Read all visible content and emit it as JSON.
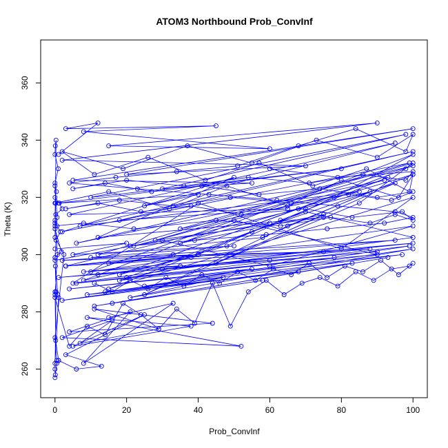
{
  "chart_data": {
    "type": "line",
    "title": "ATOM3 Northbound Prob_ConvInf",
    "xlabel": "Prob_ConvInf",
    "ylabel": "Theta (K)",
    "xlim": [
      -4,
      104
    ],
    "ylim": [
      250,
      375
    ],
    "xticks": [
      0,
      20,
      40,
      60,
      80,
      100
    ],
    "yticks": [
      260,
      280,
      300,
      320,
      340,
      360
    ],
    "grid": false,
    "marker": "open-circle",
    "color": "#0000ff",
    "series": [
      {
        "x": [
          0,
          0.5,
          1,
          0.2,
          0,
          0.8,
          0.1,
          0,
          0.3,
          1.5,
          0.6,
          0,
          0.2,
          2,
          1.2,
          0,
          0.4,
          0,
          0.9,
          0,
          0.1,
          0.3,
          0,
          0.7,
          0,
          1,
          0,
          0.5,
          0,
          2.5,
          0,
          0.2,
          0,
          0.6,
          0,
          1.8,
          0,
          0.3,
          0,
          0.1
        ],
        "y": [
          257,
          262,
          263,
          270,
          287,
          286,
          296,
          299,
          305,
          308,
          310,
          312,
          314,
          316,
          318,
          320,
          322,
          325,
          330,
          335,
          338,
          340,
          311,
          300,
          286,
          285,
          262,
          263,
          271,
          300,
          306,
          318,
          324,
          313,
          309,
          301,
          299,
          287,
          260,
          258
        ]
      },
      {
        "x": [
          1,
          12,
          3,
          45,
          8,
          60,
          15,
          90,
          2,
          70,
          20,
          100,
          5,
          55,
          30,
          98,
          10,
          80,
          1,
          40,
          25,
          95,
          4,
          65,
          18,
          100,
          7,
          85,
          35,
          99,
          2,
          50,
          12,
          75,
          28,
          100,
          6,
          92,
          22,
          60
        ],
        "y": [
          335,
          346,
          344,
          345,
          343,
          337,
          338,
          346,
          333,
          331,
          328,
          344,
          326,
          325,
          323,
          342,
          320,
          330,
          318,
          321,
          317,
          339,
          314,
          316,
          312,
          336,
          310,
          322,
          309,
          332,
          308,
          327,
          306,
          313,
          305,
          331,
          304,
          326,
          303,
          311
        ]
      },
      {
        "x": [
          0,
          20,
          5,
          50,
          10,
          75,
          2,
          95,
          15,
          40,
          3,
          88,
          30,
          100,
          8,
          60,
          12,
          90,
          1,
          35,
          18,
          78,
          6,
          99,
          25,
          55,
          4,
          97,
          14,
          68,
          9,
          100,
          21,
          47,
          2,
          83,
          16,
          93,
          11,
          58
        ],
        "y": [
          302,
          304,
          300,
          303,
          299,
          301,
          298,
          305,
          297,
          300,
          296,
          302,
          295,
          304,
          294,
          298,
          293,
          301,
          292,
          296,
          291,
          299,
          290,
          303,
          289,
          295,
          288,
          300,
          287,
          294,
          286,
          302,
          285,
          292,
          284,
          297,
          283,
          299,
          282,
          291
        ]
      },
      {
        "x": [
          0,
          8,
          22,
          45,
          63,
          77,
          88,
          95,
          100,
          97,
          83,
          70,
          52,
          38,
          24,
          12,
          3,
          18,
          33,
          49,
          66,
          82,
          94,
          100,
          90,
          74,
          57,
          41,
          27,
          14,
          5,
          20,
          36,
          54,
          71,
          86,
          98,
          100,
          79,
          60
        ],
        "y": [
          310,
          311,
          309,
          312,
          310,
          313,
          311,
          314,
          312,
          315,
          313,
          316,
          314,
          317,
          315,
          318,
          316,
          319,
          317,
          320,
          318,
          321,
          319,
          322,
          320,
          323,
          321,
          324,
          322,
          325,
          323,
          326,
          324,
          327,
          325,
          328,
          326,
          329,
          327,
          330
        ]
      },
      {
        "x": [
          0,
          4,
          9,
          14,
          19,
          24,
          29,
          34,
          39,
          44,
          49,
          54,
          59,
          64,
          69,
          74,
          79,
          84,
          89,
          94,
          99,
          100,
          96,
          91,
          86,
          81,
          76,
          71,
          66,
          61,
          56,
          51,
          46,
          41,
          36,
          31,
          26,
          21,
          16,
          11
        ],
        "y": [
          285,
          268,
          275,
          272,
          283,
          279,
          274,
          281,
          276,
          290,
          275,
          287,
          291,
          286,
          290,
          292,
          289,
          294,
          291,
          295,
          296,
          297,
          293,
          298,
          294,
          296,
          292,
          297,
          293,
          295,
          291,
          294,
          290,
          293,
          289,
          292,
          288,
          291,
          287,
          290
        ]
      },
      {
        "x": [
          1,
          6,
          13,
          3,
          25,
          5,
          38,
          9,
          52,
          2,
          16,
          7,
          29,
          11,
          44,
          4,
          21,
          8,
          33,
          15
        ],
        "y": [
          263,
          260,
          261,
          265,
          279,
          268,
          275,
          278,
          268,
          271,
          277,
          269,
          274,
          281,
          276,
          273,
          280,
          262,
          283,
          278
        ]
      },
      {
        "x": [
          0,
          15,
          32,
          48,
          65,
          80,
          96,
          100,
          99,
          87,
          72,
          57,
          42,
          26,
          11,
          2,
          19,
          37,
          55,
          73,
          90,
          100,
          98,
          84,
          68,
          51,
          34,
          17,
          4,
          23,
          43,
          62,
          79,
          95,
          100,
          92,
          76,
          59,
          39,
          21
        ],
        "y": [
          318,
          322,
          316,
          324,
          317,
          326,
          320,
          328,
          322,
          330,
          324,
          332,
          326,
          334,
          328,
          336,
          330,
          338,
          332,
          340,
          334,
          342,
          336,
          344,
          338,
          331,
          329,
          327,
          325,
          323,
          321,
          319,
          317,
          315,
          313,
          311,
          309,
          307,
          305,
          303
        ]
      },
      {
        "x": [
          0,
          30,
          60,
          100,
          10,
          50,
          90,
          20,
          70,
          100,
          5,
          40,
          80,
          100,
          15,
          55,
          95,
          25,
          65,
          100,
          35,
          75,
          45,
          85,
          100,
          12,
          58,
          88,
          3,
          33,
          68,
          98,
          18,
          48,
          78,
          100,
          8,
          38,
          63,
          93
        ],
        "y": [
          298,
          305,
          296,
          310,
          294,
          312,
          300,
          292,
          315,
          306,
          290,
          318,
          302,
          320,
          288,
          308,
          325,
          286,
          310,
          328,
          304,
          314,
          297,
          318,
          332,
          300,
          306,
          322,
          296,
          300,
          316,
          330,
          293,
          303,
          320,
          335,
          291,
          299,
          312,
          327
        ]
      }
    ]
  }
}
